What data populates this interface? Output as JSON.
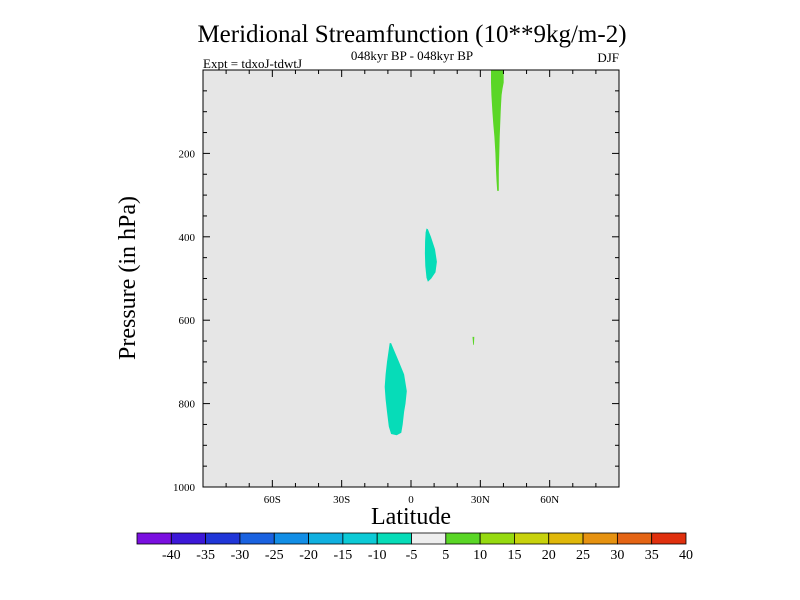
{
  "chart_data": {
    "type": "heatmap",
    "title": "Meridional Streamfunction (10**9kg/m-2)",
    "subtitle": "048kyr BP - 048kyr BP",
    "left_label": "Expt = tdxoJ-tdwtJ",
    "right_label": "DJF",
    "xlabel": "Latitude",
    "ylabel": "Pressure (in hPa)",
    "x_range": [
      -90,
      90
    ],
    "y_range": [
      0,
      1000
    ],
    "y_reversed": true,
    "x_ticks": [
      {
        "value": -60,
        "label": "60S"
      },
      {
        "value": -30,
        "label": "30S"
      },
      {
        "value": 0,
        "label": "0"
      },
      {
        "value": 30,
        "label": "30N"
      },
      {
        "value": 60,
        "label": "60N"
      }
    ],
    "y_ticks": [
      {
        "value": 200,
        "label": "200"
      },
      {
        "value": 400,
        "label": "400"
      },
      {
        "value": 600,
        "label": "600"
      },
      {
        "value": 800,
        "label": "800"
      },
      {
        "value": 1000,
        "label": "1000"
      }
    ],
    "background_color": "#e6e6e6",
    "contour_levels": [
      -40,
      -35,
      -30,
      -25,
      -20,
      -15,
      -10,
      -5,
      5,
      10,
      15,
      20,
      25,
      30,
      35,
      40
    ],
    "colorbar_colors": [
      "#7a0fe0",
      "#3c18d8",
      "#2036d8",
      "#1a62e0",
      "#128ee6",
      "#10b0e0",
      "#0ccad6",
      "#06dcb8",
      "#eeeeee",
      "#5ad626",
      "#96da10",
      "#c8d20c",
      "#e0b80a",
      "#e69210",
      "#e46414",
      "#e0300e"
    ],
    "regions": [
      {
        "name": "positive-anomaly-upper",
        "color": "#5ad626",
        "points": [
          [
            34.6,
            0
          ],
          [
            40.1,
            0
          ],
          [
            40.1,
            30
          ],
          [
            39.6,
            45
          ],
          [
            39.2,
            60
          ],
          [
            39.0,
            80
          ],
          [
            38.8,
            100
          ],
          [
            38.6,
            130
          ],
          [
            38.4,
            160
          ],
          [
            38.2,
            200
          ],
          [
            38.0,
            240
          ],
          [
            38.0,
            265
          ],
          [
            38.0,
            290
          ],
          [
            37.3,
            290
          ],
          [
            37.0,
            265
          ],
          [
            36.8,
            240
          ],
          [
            36.5,
            200
          ],
          [
            36.1,
            160
          ],
          [
            35.6,
            130
          ],
          [
            35.2,
            100
          ],
          [
            34.8,
            60
          ],
          [
            34.6,
            30
          ]
        ]
      },
      {
        "name": "negative-anomaly-mid",
        "color": "#06dcb8",
        "points": [
          [
            6.7,
            380
          ],
          [
            7.3,
            382
          ],
          [
            8.6,
            400
          ],
          [
            10.4,
            430
          ],
          [
            11.2,
            460
          ],
          [
            10.6,
            485
          ],
          [
            8.8,
            500
          ],
          [
            7.3,
            508
          ],
          [
            6.7,
            498
          ],
          [
            6.2,
            470
          ],
          [
            6.0,
            440
          ],
          [
            6.1,
            410
          ],
          [
            6.3,
            390
          ]
        ]
      },
      {
        "name": "negative-anomaly-low",
        "color": "#06dcb8",
        "points": [
          [
            -8.6,
            655
          ],
          [
            -7.5,
            670
          ],
          [
            -5.2,
            700
          ],
          [
            -3.0,
            730
          ],
          [
            -1.8,
            770
          ],
          [
            -2.4,
            800
          ],
          [
            -3.0,
            820
          ],
          [
            -3.6,
            850
          ],
          [
            -4.2,
            870
          ],
          [
            -6.2,
            876
          ],
          [
            -8.6,
            873
          ],
          [
            -9.6,
            855
          ],
          [
            -10.4,
            820
          ],
          [
            -11.0,
            790
          ],
          [
            -11.4,
            760
          ],
          [
            -11.0,
            730
          ],
          [
            -10.4,
            700
          ],
          [
            -9.6,
            670
          ],
          [
            -9.2,
            655
          ]
        ]
      },
      {
        "name": "positive-anomaly-speck",
        "color": "#5ad626",
        "points": [
          [
            26.6,
            640
          ],
          [
            27.4,
            640
          ],
          [
            27.2,
            658
          ],
          [
            26.9,
            660
          ]
        ]
      }
    ]
  }
}
